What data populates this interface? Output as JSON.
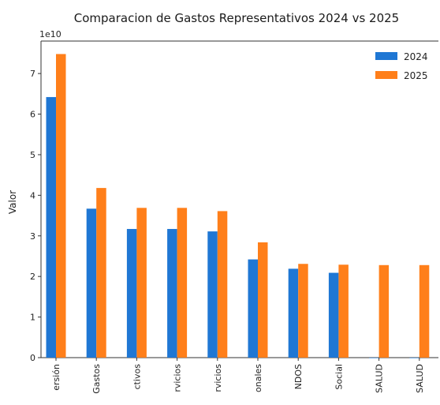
{
  "chart_data": {
    "type": "bar",
    "title": "Comparacion de Gastos Representativos 2024 vs 2025",
    "ylabel": "Valor",
    "xlabel": "",
    "offset_label": "1e10",
    "scale": 10000000000.0,
    "ylim": [
      0,
      7.8
    ],
    "yticks": [
      "0",
      "1",
      "2",
      "3",
      "4",
      "5",
      "6",
      "7"
    ],
    "categories": [
      "ersión",
      "Gastos",
      "ctivos",
      "rvicios",
      "rvicios",
      "onales",
      "NDOS",
      "Social",
      "SALUD",
      "SALUD"
    ],
    "series": [
      {
        "name": "2024",
        "color": "#1f77d4",
        "values": [
          6.42,
          3.67,
          3.17,
          3.17,
          3.11,
          2.42,
          2.19,
          2.09,
          0.0,
          0.0
        ]
      },
      {
        "name": "2025",
        "color": "#ff7f1a",
        "values": [
          7.48,
          4.18,
          3.69,
          3.69,
          3.61,
          2.84,
          2.31,
          2.29,
          2.28,
          2.28
        ]
      }
    ],
    "legend": "top-right",
    "grid": false
  }
}
